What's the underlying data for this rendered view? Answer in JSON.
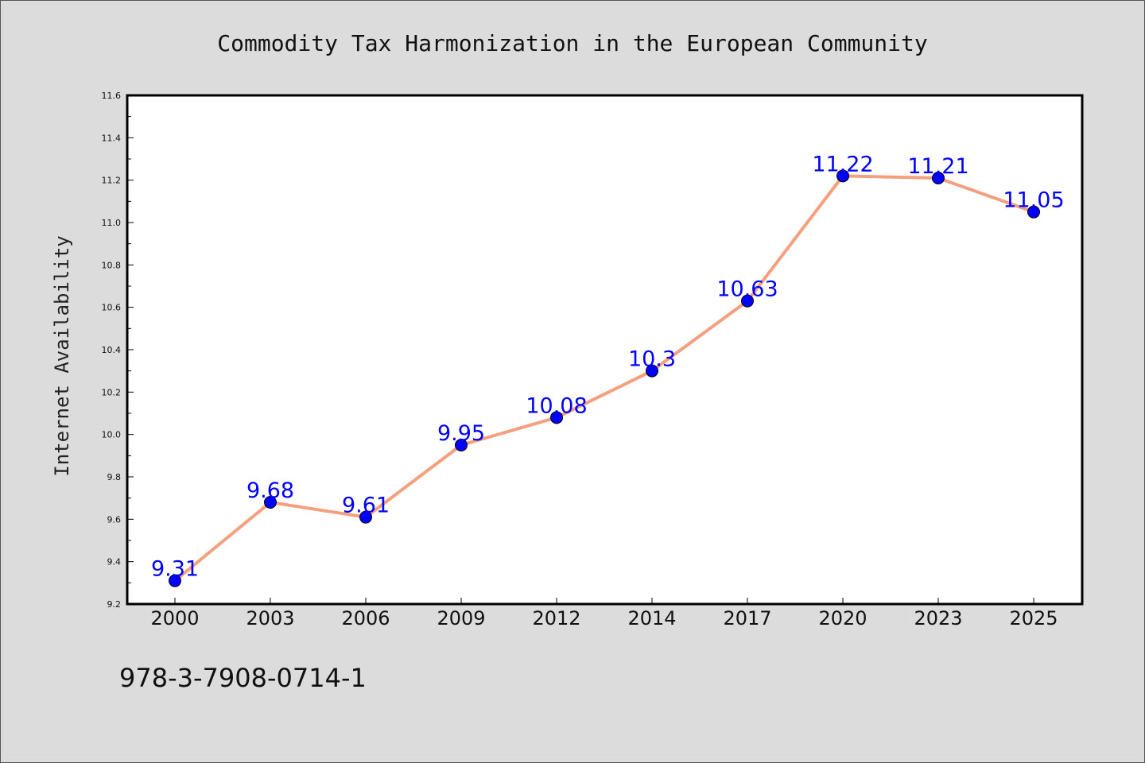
{
  "chart_data": {
    "type": "line",
    "title": "Commodity Tax Harmonization in the European Community",
    "xlabel": "",
    "ylabel": "Internet Availability",
    "categories": [
      "2000",
      "2003",
      "2006",
      "2009",
      "2012",
      "2014",
      "2017",
      "2020",
      "2023",
      "2025"
    ],
    "series": [
      {
        "values": [
          9.31,
          9.68,
          9.61,
          9.95,
          10.08,
          10.3,
          10.63,
          11.22,
          11.21,
          11.05
        ],
        "labels": [
          "9.31",
          "9.68",
          "9.61",
          "9.95",
          "10.08",
          "10.3",
          "10.63",
          "11.22",
          "11.21",
          "11.05"
        ],
        "line_color": "#f4a07e",
        "marker_color": "#0000ff"
      }
    ],
    "ylim": [
      9.2,
      11.6
    ],
    "yticks": [
      "9.2",
      "9.4",
      "9.6",
      "9.8",
      "10.0",
      "10.2",
      "10.4",
      "10.6",
      "10.8",
      "11.0",
      "11.2",
      "11.4",
      "11.6"
    ],
    "grid": false,
    "legend": "none"
  },
  "footer": {
    "isbn": "978-3-7908-0714-1"
  }
}
